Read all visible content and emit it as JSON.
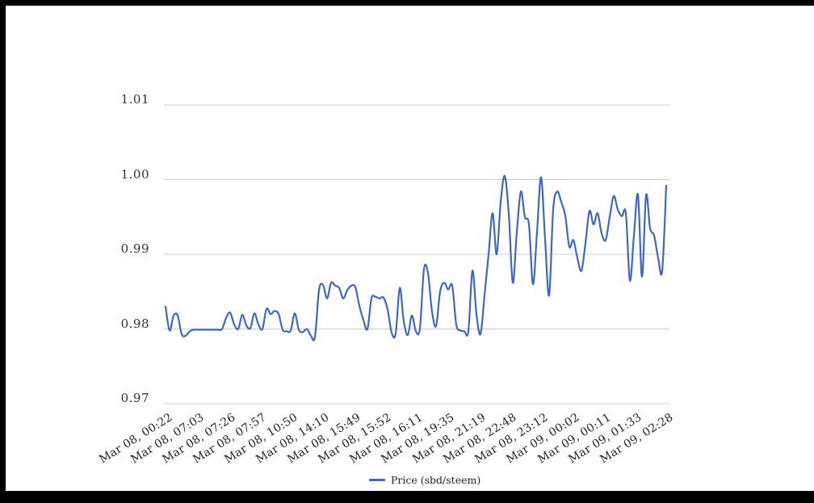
{
  "colors": {
    "frame": "#000000",
    "surface": "#ffffff",
    "line": "#3e68c2",
    "grid": "#cccccc",
    "axis_text": "#333333",
    "legend_text": "#222222"
  },
  "legend": {
    "label": "Price (sbd/steem)"
  },
  "chart_data": {
    "type": "line",
    "title": "",
    "xlabel": "",
    "ylabel": "",
    "ylim": [
      0.97,
      1.01
    ],
    "grid": true,
    "legend_position": "bottom-center",
    "y_tick_labels": [
      "1.01",
      "1.00",
      "0.99",
      "0.98",
      "0.97"
    ],
    "y_tick_values": [
      1.01,
      1.0,
      0.99,
      0.98,
      0.97
    ],
    "x_tick_labels": [
      "Mar 08, 00:22",
      "Mar 08, 07:03",
      "Mar 08, 07:26",
      "Mar 08, 07:57",
      "Mar 08, 10:50",
      "Mar 08, 14:10",
      "Mar 08, 15:49",
      "Mar 08, 15:52",
      "Mar 08, 16:11",
      "Mar 08, 19:35",
      "Mar 08, 21:19",
      "Mar 08, 22:48",
      "Mar 08, 23:12",
      "Mar 09, 00:02",
      "Mar 09, 00:11",
      "Mar 09, 01:33",
      "Mar 09, 02:28"
    ],
    "series": [
      {
        "name": "Price (sbd/steem)",
        "color": "#3e68c2",
        "values": [
          0.983,
          0.9798,
          0.9818,
          0.9818,
          0.9793,
          0.9791,
          0.9797,
          0.9799,
          0.9799,
          0.9799,
          0.9799,
          0.9799,
          0.9799,
          0.9799,
          0.98,
          0.9815,
          0.9822,
          0.9806,
          0.98,
          0.9819,
          0.9805,
          0.9801,
          0.9821,
          0.9806,
          0.98,
          0.9827,
          0.982,
          0.9824,
          0.982,
          0.9799,
          0.9797,
          0.9798,
          0.9821,
          0.9799,
          0.9796,
          0.98,
          0.9791,
          0.9789,
          0.9852,
          0.9859,
          0.9841,
          0.9862,
          0.9858,
          0.9855,
          0.9841,
          0.9852,
          0.9858,
          0.9856,
          0.9831,
          0.9812,
          0.98,
          0.9841,
          0.9843,
          0.9841,
          0.9842,
          0.9826,
          0.9795,
          0.9794,
          0.9855,
          0.981,
          0.9792,
          0.9818,
          0.9797,
          0.9801,
          0.988,
          0.9875,
          0.9823,
          0.9804,
          0.985,
          0.9862,
          0.9853,
          0.9858,
          0.9806,
          0.9798,
          0.9797,
          0.9797,
          0.9878,
          0.982,
          0.9793,
          0.9845,
          0.99,
          0.9955,
          0.99,
          0.997,
          1.0005,
          0.9955,
          0.9862,
          0.993,
          0.9984,
          0.995,
          0.994,
          0.986,
          0.993,
          1.0003,
          0.992,
          0.9845,
          0.996,
          0.9984,
          0.997,
          0.9952,
          0.991,
          0.9919,
          0.9895,
          0.9878,
          0.9915,
          0.9958,
          0.994,
          0.9955,
          0.9928,
          0.9919,
          0.995,
          0.9978,
          0.996,
          0.9951,
          0.9955,
          0.9865,
          0.9925,
          0.998,
          0.987,
          0.9979,
          0.9935,
          0.9925,
          0.9895,
          0.9878,
          0.9992
        ]
      }
    ]
  }
}
